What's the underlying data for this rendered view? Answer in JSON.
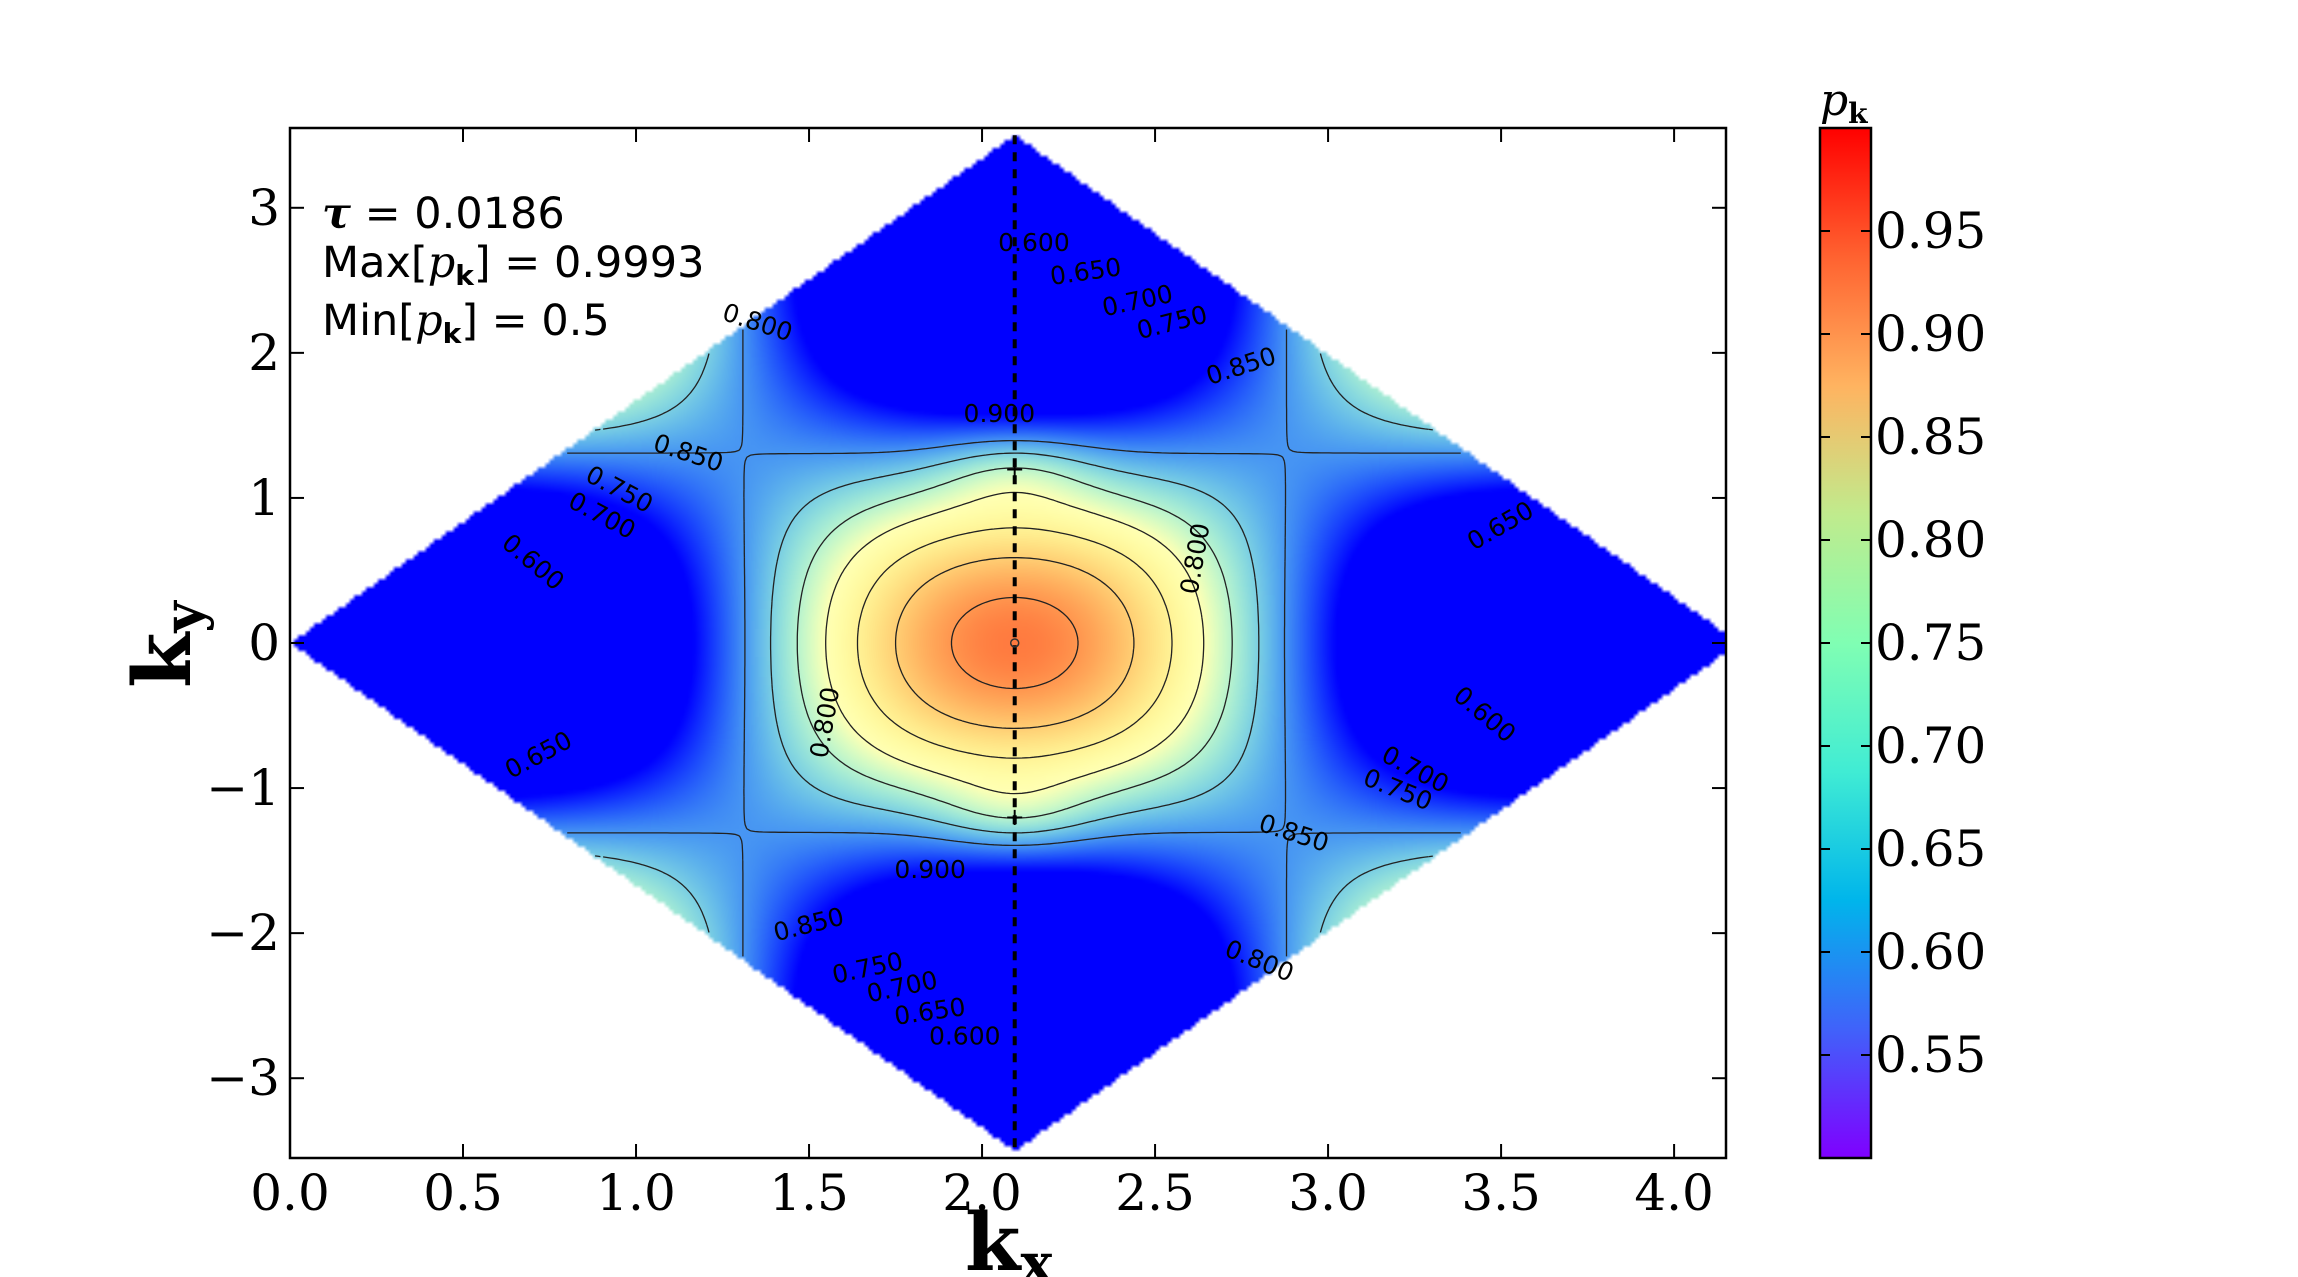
{
  "chart_data": {
    "type": "heatmap",
    "title": "",
    "xlabel": "k",
    "xlabel_sub": "x",
    "ylabel": "k",
    "ylabel_sub": "y",
    "xlim": [
      0.0,
      4.15
    ],
    "ylim": [
      -3.55,
      3.55
    ],
    "x_ticks": [
      0.0,
      0.5,
      1.0,
      1.5,
      2.0,
      2.5,
      3.0,
      3.5,
      4.0
    ],
    "x_tick_labels": [
      "0.0",
      "0.5",
      "1.0",
      "1.5",
      "2.0",
      "2.5",
      "3.0",
      "3.5",
      "4.0"
    ],
    "y_ticks": [
      3,
      2,
      1,
      0,
      -1,
      -2,
      -3
    ],
    "y_tick_labels": [
      "3",
      "2",
      "1",
      "0",
      "−1",
      "−2",
      "−3"
    ],
    "domain": "rhombus",
    "domain_vertices": [
      [
        0.0,
        0.0
      ],
      [
        2.0944,
        3.5
      ],
      [
        4.1888,
        0.0
      ],
      [
        2.0944,
        -3.5
      ]
    ],
    "dashed_line_x": 2.0944,
    "max_points": [
      [
        2.0944,
        1.2
      ],
      [
        2.0944,
        -1.2
      ]
    ],
    "center_point": [
      2.0944,
      0.0
    ],
    "colormap": "rainbow",
    "colorbar": {
      "title": "p",
      "title_sub": "k",
      "range": [
        0.5,
        1.0
      ],
      "ticks": [
        0.95,
        0.9,
        0.85,
        0.8,
        0.75,
        0.7,
        0.65,
        0.6,
        0.55
      ],
      "tick_labels": [
        "0.95",
        "0.90",
        "0.85",
        "0.80",
        "0.75",
        "0.70",
        "0.65",
        "0.60",
        "0.55"
      ]
    },
    "contour_levels": [
      0.6,
      0.65,
      0.7,
      0.75,
      0.8,
      0.85,
      0.9
    ],
    "contour_labels": [
      {
        "text": "0.600",
        "x": 2.15,
        "y": 2.75,
        "angle": 0
      },
      {
        "text": "0.650",
        "x": 2.3,
        "y": 2.55,
        "angle": -8
      },
      {
        "text": "0.700",
        "x": 2.45,
        "y": 2.35,
        "angle": -12
      },
      {
        "text": "0.750",
        "x": 2.55,
        "y": 2.2,
        "angle": -14
      },
      {
        "text": "0.800",
        "x": 1.35,
        "y": 2.2,
        "angle": 18
      },
      {
        "text": "0.850",
        "x": 2.75,
        "y": 1.9,
        "angle": -18
      },
      {
        "text": "0.900",
        "x": 2.05,
        "y": 1.57,
        "angle": 0
      },
      {
        "text": "0.850",
        "x": 1.15,
        "y": 1.3,
        "angle": 18
      },
      {
        "text": "0.750",
        "x": 0.95,
        "y": 1.05,
        "angle": 28
      },
      {
        "text": "0.700",
        "x": 0.9,
        "y": 0.87,
        "angle": 28
      },
      {
        "text": "0.600",
        "x": 0.7,
        "y": 0.55,
        "angle": 40
      },
      {
        "text": "0.800",
        "x": 2.62,
        "y": 0.58,
        "angle": -80
      },
      {
        "text": "0.650",
        "x": 3.5,
        "y": 0.8,
        "angle": -30
      },
      {
        "text": "0.800",
        "x": 1.55,
        "y": -0.55,
        "angle": -80
      },
      {
        "text": "0.600",
        "x": 3.45,
        "y": -0.5,
        "angle": 40
      },
      {
        "text": "0.650",
        "x": 0.72,
        "y": -0.78,
        "angle": -28
      },
      {
        "text": "0.700",
        "x": 3.25,
        "y": -0.88,
        "angle": 28
      },
      {
        "text": "0.750",
        "x": 3.2,
        "y": -1.02,
        "angle": 22
      },
      {
        "text": "0.850",
        "x": 2.9,
        "y": -1.32,
        "angle": 18
      },
      {
        "text": "0.900",
        "x": 1.85,
        "y": -1.57,
        "angle": 0
      },
      {
        "text": "0.850",
        "x": 1.5,
        "y": -1.95,
        "angle": -14
      },
      {
        "text": "0.800",
        "x": 2.8,
        "y": -2.2,
        "angle": 22
      },
      {
        "text": "0.750",
        "x": 1.67,
        "y": -2.25,
        "angle": -12
      },
      {
        "text": "0.700",
        "x": 1.77,
        "y": -2.38,
        "angle": -12
      },
      {
        "text": "0.650",
        "x": 1.85,
        "y": -2.55,
        "angle": -8
      },
      {
        "text": "0.600",
        "x": 1.95,
        "y": -2.72,
        "angle": 0
      }
    ],
    "grid": false,
    "legend": "none"
  },
  "annotations": {
    "tau_symbol": "τ",
    "tau_text": " = 0.0186",
    "max_prefix": "Max[",
    "max_math": "p",
    "max_sub": "k",
    "max_suffix": "] = 0.9993",
    "min_prefix": "Min[",
    "min_math": "p",
    "min_sub": "k",
    "min_suffix": "]  = 0.5"
  }
}
